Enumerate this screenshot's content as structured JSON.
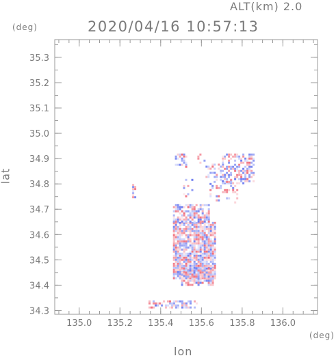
{
  "header": {
    "altitude": "ALT(km)  2.0",
    "datetime": "2020/04/16 10:57:13"
  },
  "chart_data": {
    "type": "heatmap",
    "title": "2020/04/16 10:57:13",
    "subtitle": "ALT(km)  2.0",
    "xlabel": "lon",
    "ylabel": "lat",
    "x_unit": "(deg)",
    "y_unit": "(deg)",
    "xlim": [
      134.88,
      136.17
    ],
    "ylim": [
      34.285,
      35.37
    ],
    "x_ticks": [
      "135.0",
      "135.2",
      "135.4",
      "135.6",
      "135.8",
      "136.0"
    ],
    "y_ticks": [
      "34.3",
      "34.4",
      "34.5",
      "34.6",
      "34.7",
      "34.8",
      "34.9",
      "35.0",
      "35.1",
      "35.2",
      "35.3"
    ],
    "colors": {
      "positive": "#f07080",
      "negative": "#6f7ff0",
      "axis": "#999999"
    },
    "regions": [
      {
        "lon": [
          135.46,
          135.67
        ],
        "lat": [
          34.43,
          34.65
        ],
        "density": 0.9
      },
      {
        "lon": [
          135.5,
          135.66
        ],
        "lat": [
          34.4,
          34.47
        ],
        "density": 0.75
      },
      {
        "lon": [
          135.46,
          135.64
        ],
        "lat": [
          34.65,
          34.72
        ],
        "density": 0.7
      },
      {
        "lon": [
          135.33,
          135.58
        ],
        "lat": [
          34.31,
          34.34
        ],
        "density": 0.5
      },
      {
        "lon": [
          135.47,
          135.53
        ],
        "lat": [
          34.87,
          34.92
        ],
        "density": 0.55
      },
      {
        "lon": [
          135.62,
          135.72
        ],
        "lat": [
          34.83,
          34.88
        ],
        "density": 0.4
      },
      {
        "lon": [
          135.7,
          135.86
        ],
        "lat": [
          34.8,
          34.92
        ],
        "density": 0.5
      },
      {
        "lon": [
          135.64,
          135.78
        ],
        "lat": [
          34.73,
          34.82
        ],
        "density": 0.35
      },
      {
        "lon": [
          135.58,
          135.63
        ],
        "lat": [
          34.88,
          34.92
        ],
        "density": 0.3
      },
      {
        "lon": [
          135.26,
          135.28
        ],
        "lat": [
          34.75,
          34.8
        ],
        "density": 0.5
      },
      {
        "lon": [
          135.51,
          135.56
        ],
        "lat": [
          34.75,
          34.82
        ],
        "density": 0.25
      }
    ]
  }
}
